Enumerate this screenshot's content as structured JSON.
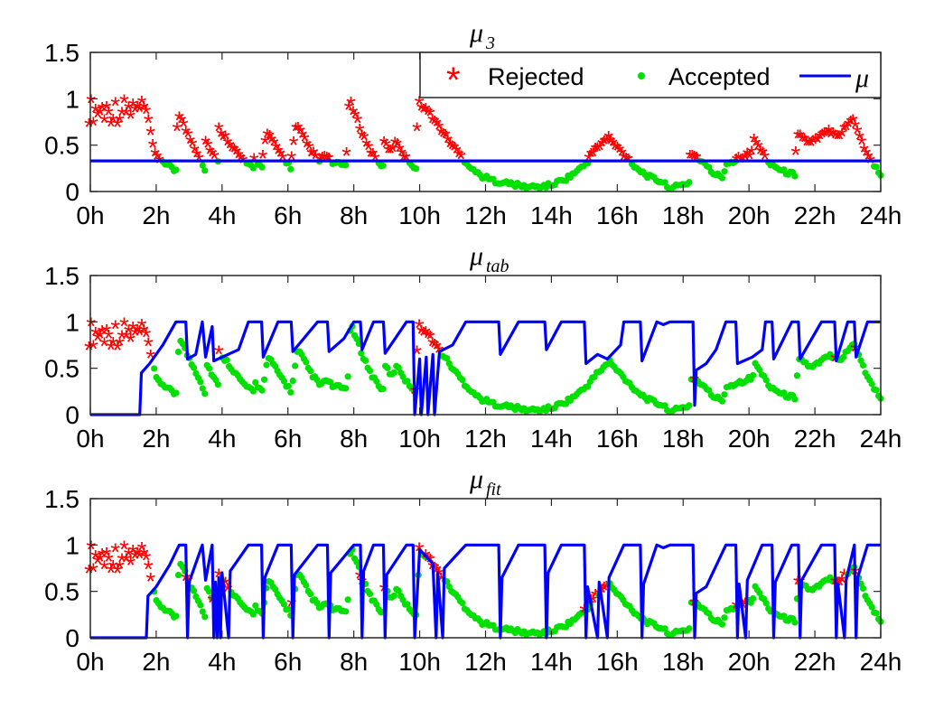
{
  "chart_data": [
    {
      "type": "scatter",
      "title": {
        "base": "μ",
        "sub": "3"
      },
      "xlabel": "",
      "ylabel": "",
      "xlim": [
        0,
        24
      ],
      "ylim": [
        0,
        1.5
      ],
      "xticks": [
        "0h",
        "2h",
        "4h",
        "6h",
        "8h",
        "10h",
        "12h",
        "14h",
        "16h",
        "18h",
        "20h",
        "22h",
        "24h"
      ],
      "yticks": [
        "0",
        "0.5",
        "1",
        "1.5"
      ],
      "legend": {
        "position": "top-right",
        "entries": [
          "Rejected",
          "Accepted",
          "μ"
        ]
      },
      "mu_constant": 0.33,
      "segments": [
        [
          0.0,
          0.82
        ],
        [
          0.2,
          0.9
        ],
        [
          0.5,
          0.8
        ],
        [
          0.8,
          0.92
        ],
        [
          1.1,
          0.95
        ],
        [
          1.4,
          0.88
        ],
        [
          1.8,
          0.75
        ],
        [
          2.0,
          0.38
        ],
        [
          2.3,
          0.3
        ],
        [
          2.6,
          0.2
        ],
        [
          2.7,
          0.85
        ],
        [
          3.0,
          0.6
        ],
        [
          3.3,
          0.4
        ],
        [
          3.5,
          0.22
        ],
        [
          3.2,
          0.75
        ],
        [
          3.6,
          0.5
        ],
        [
          3.9,
          0.3
        ],
        [
          3.8,
          0.72
        ],
        [
          4.2,
          0.55
        ],
        [
          4.6,
          0.35
        ],
        [
          5.0,
          0.22
        ],
        [
          4.5,
          0.65
        ],
        [
          4.9,
          0.4
        ],
        [
          5.2,
          0.25
        ],
        [
          5.4,
          0.62
        ],
        [
          5.8,
          0.4
        ],
        [
          6.1,
          0.25
        ],
        [
          6.3,
          0.7
        ],
        [
          6.7,
          0.45
        ],
        [
          7.0,
          0.3
        ],
        [
          7.1,
          0.38
        ],
        [
          7.4,
          0.3
        ],
        [
          7.8,
          0.28
        ],
        [
          7.9,
          0.98
        ],
        [
          8.2,
          0.7
        ],
        [
          8.5,
          0.45
        ],
        [
          8.9,
          0.25
        ],
        [
          8.6,
          0.75
        ],
        [
          8.9,
          0.55
        ],
        [
          9.2,
          0.4
        ],
        [
          9.3,
          0.55
        ],
        [
          9.6,
          0.35
        ],
        [
          9.9,
          0.25
        ],
        [
          10.0,
          0.95
        ],
        [
          10.3,
          0.85
        ],
        [
          10.6,
          0.7
        ],
        [
          11.0,
          0.5
        ],
        [
          11.4,
          0.32
        ],
        [
          11.8,
          0.18
        ],
        [
          12.2,
          0.12
        ],
        [
          12.8,
          0.08
        ],
        [
          13.2,
          0.05
        ],
        [
          13.6,
          0.05
        ],
        [
          14.0,
          0.07
        ],
        [
          14.5,
          0.15
        ],
        [
          15.0,
          0.28
        ],
        [
          15.4,
          0.45
        ],
        [
          15.8,
          0.58
        ],
        [
          15.8,
          0.55
        ],
        [
          16.2,
          0.4
        ],
        [
          16.6,
          0.25
        ],
        [
          17.0,
          0.15
        ],
        [
          17.4,
          0.1
        ],
        [
          17.5,
          0.05
        ],
        [
          17.8,
          0.05
        ],
        [
          18.2,
          0.1
        ],
        [
          18.2,
          0.4
        ],
        [
          18.5,
          0.35
        ],
        [
          18.9,
          0.2
        ],
        [
          19.2,
          0.15
        ],
        [
          19.3,
          0.3
        ],
        [
          19.7,
          0.35
        ],
        [
          20.1,
          0.4
        ],
        [
          20.2,
          0.55
        ],
        [
          20.6,
          0.32
        ],
        [
          21.0,
          0.22
        ],
        [
          21.4,
          0.18
        ],
        [
          21.5,
          0.62
        ],
        [
          21.9,
          0.5
        ],
        [
          22.3,
          0.6
        ],
        [
          22.4,
          0.65
        ],
        [
          22.8,
          0.6
        ],
        [
          23.2,
          0.78
        ],
        [
          23.6,
          0.4
        ],
        [
          24.0,
          0.18
        ]
      ]
    },
    {
      "type": "scatter",
      "title": {
        "base": "μ",
        "sub": "tab"
      },
      "xlabel": "",
      "ylabel": "",
      "xlim": [
        0,
        24
      ],
      "ylim": [
        0,
        1.5
      ],
      "xticks": [
        "0h",
        "2h",
        "4h",
        "6h",
        "8h",
        "10h",
        "12h",
        "14h",
        "16h",
        "18h",
        "20h",
        "22h",
        "24h"
      ],
      "yticks": [
        "0",
        "0.5",
        "1",
        "1.5"
      ],
      "mu_curve": [
        [
          0.0,
          0.0
        ],
        [
          1.5,
          0.0
        ],
        [
          1.55,
          0.45
        ],
        [
          1.8,
          0.55
        ],
        [
          2.2,
          0.75
        ],
        [
          2.6,
          1.0
        ],
        [
          2.9,
          1.0
        ],
        [
          2.95,
          0.6
        ],
        [
          3.2,
          0.65
        ],
        [
          3.4,
          1.0
        ],
        [
          3.5,
          0.62
        ],
        [
          3.7,
          0.95
        ],
        [
          3.75,
          0.58
        ],
        [
          4.5,
          0.7
        ],
        [
          4.8,
          1.0
        ],
        [
          5.2,
          1.0
        ],
        [
          5.25,
          0.62
        ],
        [
          5.7,
          1.0
        ],
        [
          6.1,
          1.0
        ],
        [
          6.15,
          0.68
        ],
        [
          6.9,
          1.0
        ],
        [
          7.2,
          1.0
        ],
        [
          7.25,
          0.68
        ],
        [
          7.7,
          0.82
        ],
        [
          8.0,
          1.0
        ],
        [
          8.2,
          1.0
        ],
        [
          8.25,
          0.7
        ],
        [
          8.6,
          1.0
        ],
        [
          8.9,
          1.0
        ],
        [
          8.95,
          0.66
        ],
        [
          9.6,
          1.0
        ],
        [
          9.8,
          1.0
        ],
        [
          9.85,
          0.0
        ],
        [
          10.0,
          0.6
        ],
        [
          10.05,
          0.0
        ],
        [
          10.2,
          0.62
        ],
        [
          10.25,
          0.0
        ],
        [
          10.4,
          0.65
        ],
        [
          10.45,
          0.0
        ],
        [
          10.6,
          0.68
        ],
        [
          11.0,
          0.75
        ],
        [
          11.4,
          1.0
        ],
        [
          12.4,
          1.0
        ],
        [
          12.45,
          0.65
        ],
        [
          13.0,
          1.0
        ],
        [
          13.8,
          1.0
        ],
        [
          13.85,
          0.7
        ],
        [
          14.3,
          1.0
        ],
        [
          15.0,
          1.0
        ],
        [
          15.05,
          0.55
        ],
        [
          15.4,
          0.65
        ],
        [
          15.7,
          0.6
        ],
        [
          16.1,
          0.75
        ],
        [
          16.2,
          1.0
        ],
        [
          16.7,
          1.0
        ],
        [
          16.75,
          0.58
        ],
        [
          17.2,
          1.0
        ],
        [
          17.4,
          0.97
        ],
        [
          17.6,
          1.0
        ],
        [
          18.3,
          1.0
        ],
        [
          18.35,
          0.1
        ],
        [
          18.4,
          0.48
        ],
        [
          18.7,
          0.55
        ],
        [
          19.0,
          0.7
        ],
        [
          19.3,
          1.0
        ],
        [
          19.6,
          1.0
        ],
        [
          19.65,
          0.55
        ],
        [
          20.1,
          0.62
        ],
        [
          20.4,
          0.7
        ],
        [
          20.5,
          1.0
        ],
        [
          20.7,
          1.0
        ],
        [
          20.75,
          0.6
        ],
        [
          21.3,
          1.0
        ],
        [
          21.5,
          1.0
        ],
        [
          21.55,
          0.6
        ],
        [
          22.2,
          1.0
        ],
        [
          22.6,
          1.0
        ],
        [
          22.65,
          0.58
        ],
        [
          23.0,
          1.0
        ],
        [
          23.2,
          1.0
        ],
        [
          23.25,
          0.62
        ],
        [
          23.6,
          1.0
        ],
        [
          24.0,
          1.0
        ]
      ]
    },
    {
      "type": "scatter",
      "title": {
        "base": "μ",
        "sub": "fit"
      },
      "xlabel": "",
      "ylabel": "",
      "xlim": [
        0,
        24
      ],
      "ylim": [
        0,
        1.5
      ],
      "xticks": [
        "0h",
        "2h",
        "4h",
        "6h",
        "8h",
        "10h",
        "12h",
        "14h",
        "16h",
        "18h",
        "20h",
        "22h",
        "24h"
      ],
      "yticks": [
        "0",
        "0.5",
        "1",
        "1.5"
      ],
      "mu_curve": [
        [
          0.0,
          0.0
        ],
        [
          1.7,
          0.0
        ],
        [
          1.75,
          0.45
        ],
        [
          2.0,
          0.55
        ],
        [
          2.4,
          0.78
        ],
        [
          2.7,
          1.0
        ],
        [
          2.9,
          1.0
        ],
        [
          2.95,
          0.0
        ],
        [
          3.0,
          0.6
        ],
        [
          3.4,
          1.0
        ],
        [
          3.5,
          0.62
        ],
        [
          3.7,
          1.0
        ],
        [
          3.75,
          0.0
        ],
        [
          3.8,
          0.6
        ],
        [
          3.85,
          0.0
        ],
        [
          3.9,
          0.65
        ],
        [
          3.95,
          0.0
        ],
        [
          4.0,
          0.7
        ],
        [
          4.2,
          0.0
        ],
        [
          4.25,
          0.72
        ],
        [
          4.8,
          1.0
        ],
        [
          5.2,
          1.0
        ],
        [
          5.25,
          0.0
        ],
        [
          5.3,
          0.65
        ],
        [
          5.7,
          1.0
        ],
        [
          6.1,
          1.0
        ],
        [
          6.15,
          0.0
        ],
        [
          6.2,
          0.68
        ],
        [
          6.9,
          1.0
        ],
        [
          7.2,
          1.0
        ],
        [
          7.25,
          0.0
        ],
        [
          7.3,
          0.7
        ],
        [
          8.0,
          1.0
        ],
        [
          8.2,
          1.0
        ],
        [
          8.25,
          0.0
        ],
        [
          8.3,
          0.72
        ],
        [
          8.6,
          1.0
        ],
        [
          8.9,
          1.0
        ],
        [
          8.95,
          0.0
        ],
        [
          9.0,
          0.68
        ],
        [
          9.6,
          1.0
        ],
        [
          9.8,
          1.0
        ],
        [
          9.85,
          0.0
        ],
        [
          10.0,
          0.95
        ],
        [
          10.4,
          0.8
        ],
        [
          10.5,
          0.0
        ],
        [
          10.55,
          0.7
        ],
        [
          10.7,
          0.0
        ],
        [
          10.75,
          0.75
        ],
        [
          11.4,
          1.0
        ],
        [
          12.4,
          1.0
        ],
        [
          12.45,
          0.0
        ],
        [
          12.5,
          0.65
        ],
        [
          13.0,
          1.0
        ],
        [
          13.8,
          1.0
        ],
        [
          13.85,
          0.0
        ],
        [
          13.9,
          0.7
        ],
        [
          14.3,
          1.0
        ],
        [
          15.0,
          1.0
        ],
        [
          15.05,
          0.0
        ],
        [
          15.1,
          0.55
        ],
        [
          15.4,
          0.0
        ],
        [
          15.45,
          0.6
        ],
        [
          15.7,
          0.0
        ],
        [
          15.75,
          0.65
        ],
        [
          16.2,
          1.0
        ],
        [
          16.7,
          1.0
        ],
        [
          16.75,
          0.0
        ],
        [
          16.8,
          0.58
        ],
        [
          17.2,
          1.0
        ],
        [
          17.4,
          0.97
        ],
        [
          17.6,
          1.0
        ],
        [
          18.3,
          1.0
        ],
        [
          18.35,
          0.0
        ],
        [
          18.4,
          0.48
        ],
        [
          18.7,
          0.55
        ],
        [
          19.3,
          1.0
        ],
        [
          19.6,
          1.0
        ],
        [
          19.65,
          0.0
        ],
        [
          19.7,
          0.58
        ],
        [
          19.9,
          0.0
        ],
        [
          19.95,
          0.62
        ],
        [
          20.4,
          1.0
        ],
        [
          20.7,
          1.0
        ],
        [
          20.75,
          0.0
        ],
        [
          20.8,
          0.6
        ],
        [
          21.3,
          1.0
        ],
        [
          21.5,
          1.0
        ],
        [
          21.55,
          0.0
        ],
        [
          21.6,
          0.62
        ],
        [
          22.2,
          1.0
        ],
        [
          22.6,
          1.0
        ],
        [
          22.65,
          0.0
        ],
        [
          22.7,
          0.58
        ],
        [
          22.9,
          0.0
        ],
        [
          22.95,
          0.62
        ],
        [
          23.2,
          1.0
        ],
        [
          23.25,
          0.0
        ],
        [
          23.3,
          0.65
        ],
        [
          23.6,
          1.0
        ],
        [
          24.0,
          1.0
        ]
      ]
    }
  ],
  "colors": {
    "rejected": "#ff0000",
    "accepted": "#00e000",
    "mu": "#0000ff",
    "axis": "#262626"
  },
  "legend": {
    "rejected_label": "Rejected",
    "accepted_label": "Accepted",
    "mu_label": "μ"
  }
}
